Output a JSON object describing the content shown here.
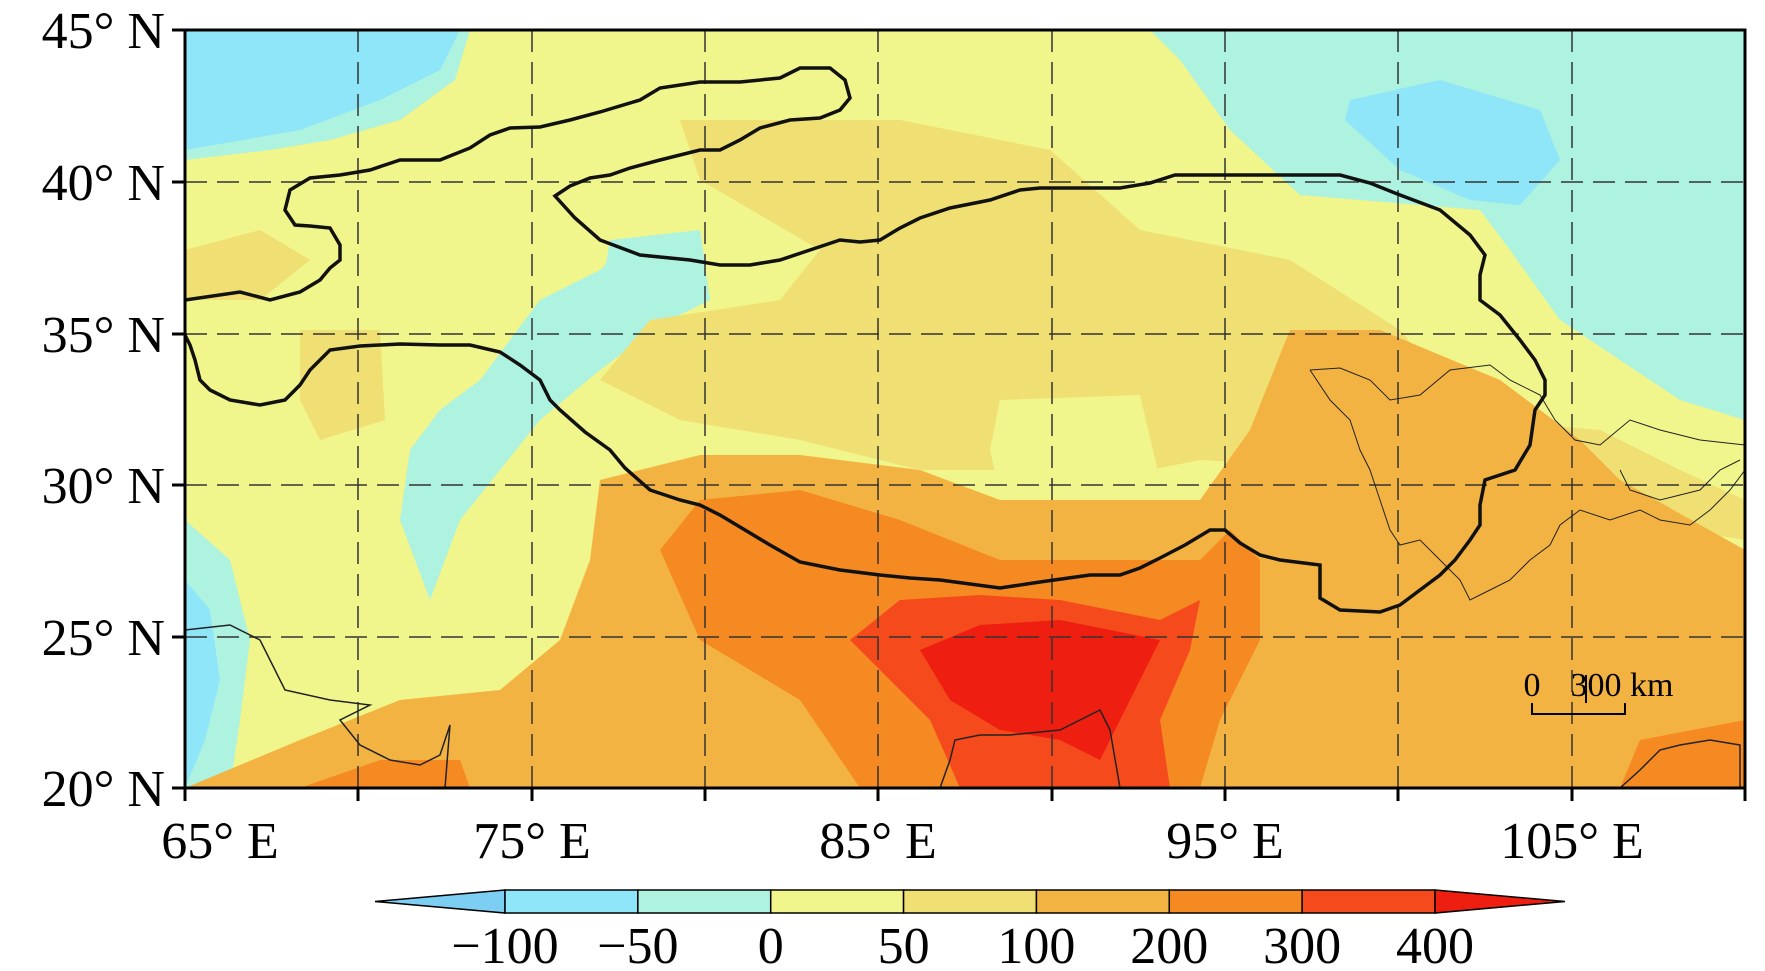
{
  "map": {
    "lon_range": [
      65,
      110
    ],
    "lat_range": [
      20,
      45
    ],
    "lat_ticks": [
      {
        "value": 45,
        "label": "45° N"
      },
      {
        "value": 40,
        "label": "40° N"
      },
      {
        "value": 35,
        "label": "35° N"
      },
      {
        "value": 30,
        "label": "30° N"
      },
      {
        "value": 25,
        "label": "25° N"
      },
      {
        "value": 20,
        "label": "20° N"
      }
    ],
    "lon_ticks": [
      {
        "value": 65,
        "label": "65° E"
      },
      {
        "value": 75,
        "label": "75° E"
      },
      {
        "value": 85,
        "label": "85° E"
      },
      {
        "value": 95,
        "label": "95° E"
      },
      {
        "value": 105,
        "label": "105° E"
      }
    ],
    "gridlines": "dashed, every 5°",
    "scale_bar": {
      "zero_label": "0",
      "distance_label": "300 km"
    }
  },
  "colorbar": {
    "labels": [
      "−100",
      "−50",
      "0",
      "50",
      "100",
      "200",
      "300",
      "400"
    ],
    "colors": [
      "#7ccff2",
      "#8ee6f8",
      "#aef2e0",
      "#f0f58c",
      "#f0df72",
      "#f3b343",
      "#f58a22",
      "#f54a1c",
      "#ee1e10"
    ]
  }
}
